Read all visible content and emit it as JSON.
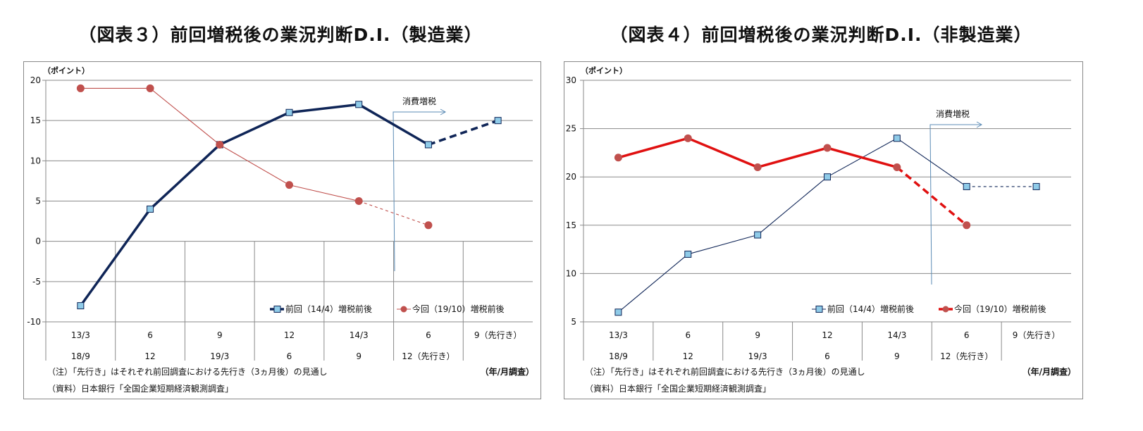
{
  "charts": [
    {
      "title": "（図表３）前回増税後の業況判断D.I.（製造業）",
      "unit_label": "（ポイント）",
      "type": "line",
      "ylim": [
        -10,
        20
      ],
      "yticks": [
        20,
        15,
        10,
        5,
        0,
        -5,
        -10
      ],
      "grid": true,
      "categories_row1": [
        "13/3",
        "6",
        "9",
        "12",
        "14/3",
        "6",
        "9（先行き）"
      ],
      "categories_row2": [
        "18/9",
        "12",
        "19/3",
        "6",
        "9",
        "12（先行き）",
        ""
      ],
      "annotation": "消費増税",
      "xlabel": "（年/月調査）",
      "note": "（注）「先行き」はそれぞれ前回調査における先行き（3ヵ月後）の見通し",
      "source": "（資料）日本銀行「全国企業短期経済観測調査」",
      "legend_position": "bottom-right",
      "series": [
        {
          "name": "前回（14/4）増税前後",
          "values": [
            -8,
            4,
            12,
            16,
            17,
            12,
            15
          ],
          "forecast_last": true,
          "marker": "square",
          "color": "#0F2557",
          "emphasis": "thick"
        },
        {
          "name": "今回（19/10）増税前後",
          "values": [
            19,
            19,
            12,
            7,
            5,
            2,
            null
          ],
          "forecast_last": true,
          "marker": "circle",
          "color": "#C0504D",
          "emphasis": "thin"
        }
      ]
    },
    {
      "title": "（図表４）前回増税後の業況判断D.I.（非製造業）",
      "unit_label": "（ポイント）",
      "type": "line",
      "ylim": [
        5,
        30
      ],
      "yticks": [
        30,
        25,
        20,
        15,
        10,
        5
      ],
      "grid": true,
      "categories_row1": [
        "13/3",
        "6",
        "9",
        "12",
        "14/3",
        "6",
        "9（先行き）"
      ],
      "categories_row2": [
        "18/9",
        "12",
        "19/3",
        "6",
        "9",
        "12（先行き）",
        ""
      ],
      "annotation": "消費増税",
      "xlabel": "（年/月調査）",
      "note": "（注）「先行き」はそれぞれ前回調査における先行き（3ヵ月後）の見通し",
      "source": "（資料）日本銀行「全国企業短期経済観測調査」",
      "legend_position": "bottom-right",
      "series": [
        {
          "name": "前回（14/4）増税前後",
          "values": [
            6,
            12,
            14,
            20,
            24,
            19,
            19
          ],
          "forecast_last": true,
          "marker": "square",
          "color": "#0F2557",
          "emphasis": "thin"
        },
        {
          "name": "今回（19/10）増税前後",
          "values": [
            22,
            24,
            21,
            23,
            21,
            15,
            null
          ],
          "forecast_last": true,
          "marker": "circle",
          "color": "#E01010",
          "emphasis": "thick"
        }
      ]
    }
  ],
  "chart_data": [
    {
      "type": "line",
      "title": "（図表３）前回増税後の業況判断D.I.（製造業）",
      "ylabel": "（ポイント）",
      "xlabel": "（年/月調査）",
      "ylim": [
        -10,
        20
      ],
      "categories": [
        "13/3 | 18/9",
        "6 | 12",
        "9 | 19/3",
        "12 | 6",
        "14/3 | 9",
        "6 | 12（先行き）",
        "9（先行き）"
      ],
      "series": [
        {
          "name": "前回（14/4）増税前後",
          "values": [
            -8,
            4,
            12,
            16,
            17,
            12,
            15
          ]
        },
        {
          "name": "今回（19/10）増税前後",
          "values": [
            19,
            19,
            12,
            7,
            5,
            2,
            null
          ]
        }
      ]
    },
    {
      "type": "line",
      "title": "（図表４）前回増税後の業況判断D.I.（非製造業）",
      "ylabel": "（ポイント）",
      "xlabel": "（年/月調査）",
      "ylim": [
        5,
        30
      ],
      "categories": [
        "13/3 | 18/9",
        "6 | 12",
        "9 | 19/3",
        "12 | 6",
        "14/3 | 9",
        "6 | 12（先行き）",
        "9（先行き）"
      ],
      "series": [
        {
          "name": "前回（14/4）増税前後",
          "values": [
            6,
            12,
            14,
            20,
            24,
            19,
            19
          ]
        },
        {
          "name": "今回（19/10）増税前後",
          "values": [
            22,
            24,
            21,
            23,
            21,
            15,
            null
          ]
        }
      ]
    }
  ],
  "marker_fill": "#8FCBE8"
}
